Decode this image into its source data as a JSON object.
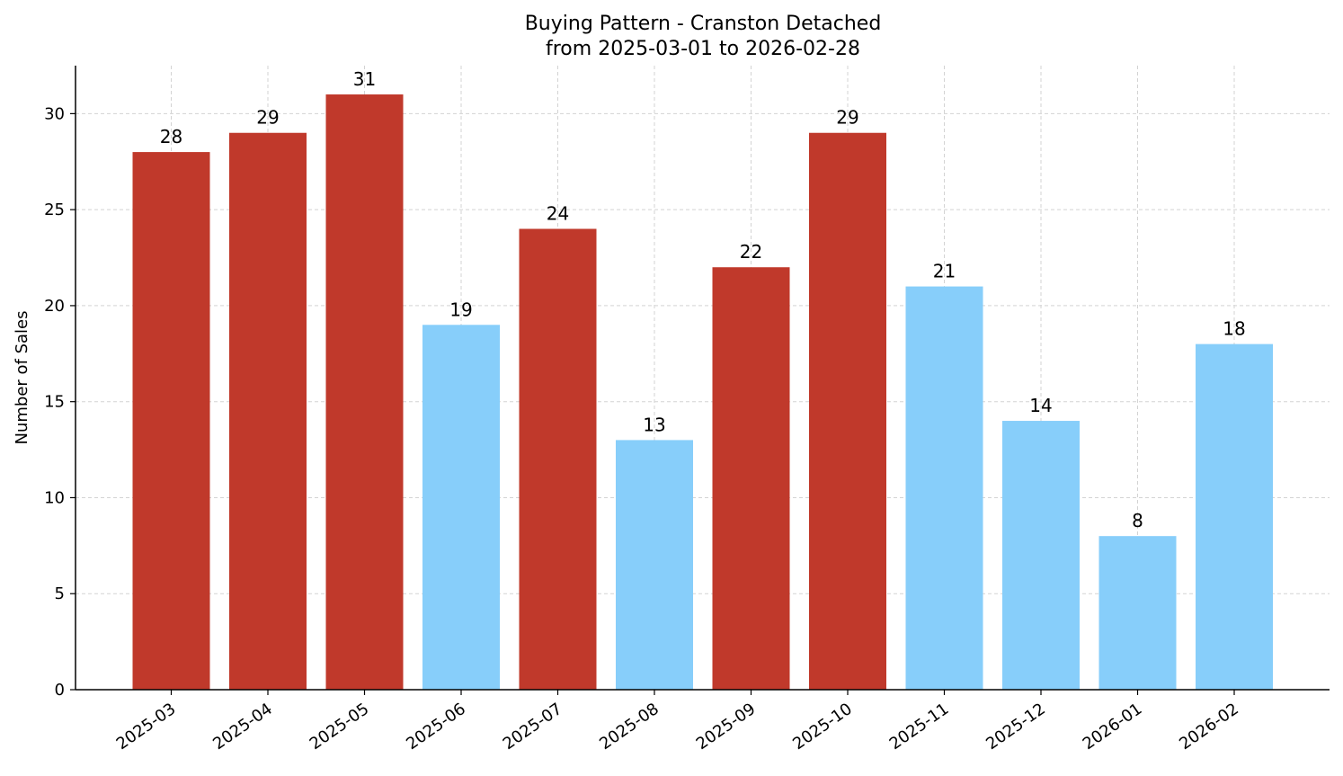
{
  "chart_data": {
    "type": "bar",
    "title": "Buying Pattern - Cranston Detached",
    "subtitle": "from 2025-03-01 to 2026-02-28",
    "xlabel": "",
    "ylabel": "Number of Sales",
    "ylim": [
      0,
      32.5
    ],
    "yticks": [
      0,
      5,
      10,
      15,
      20,
      25,
      30
    ],
    "grid": true,
    "categories": [
      "2025-03",
      "2025-04",
      "2025-05",
      "2025-06",
      "2025-07",
      "2025-08",
      "2025-09",
      "2025-10",
      "2025-11",
      "2025-12",
      "2026-01",
      "2026-02"
    ],
    "values": [
      28,
      29,
      31,
      19,
      24,
      13,
      22,
      29,
      21,
      14,
      8,
      18
    ],
    "bar_colors": [
      "#c0392b",
      "#c0392b",
      "#c0392b",
      "#87cefa",
      "#c0392b",
      "#87cefa",
      "#c0392b",
      "#c0392b",
      "#87cefa",
      "#87cefa",
      "#87cefa",
      "#87cefa"
    ]
  }
}
